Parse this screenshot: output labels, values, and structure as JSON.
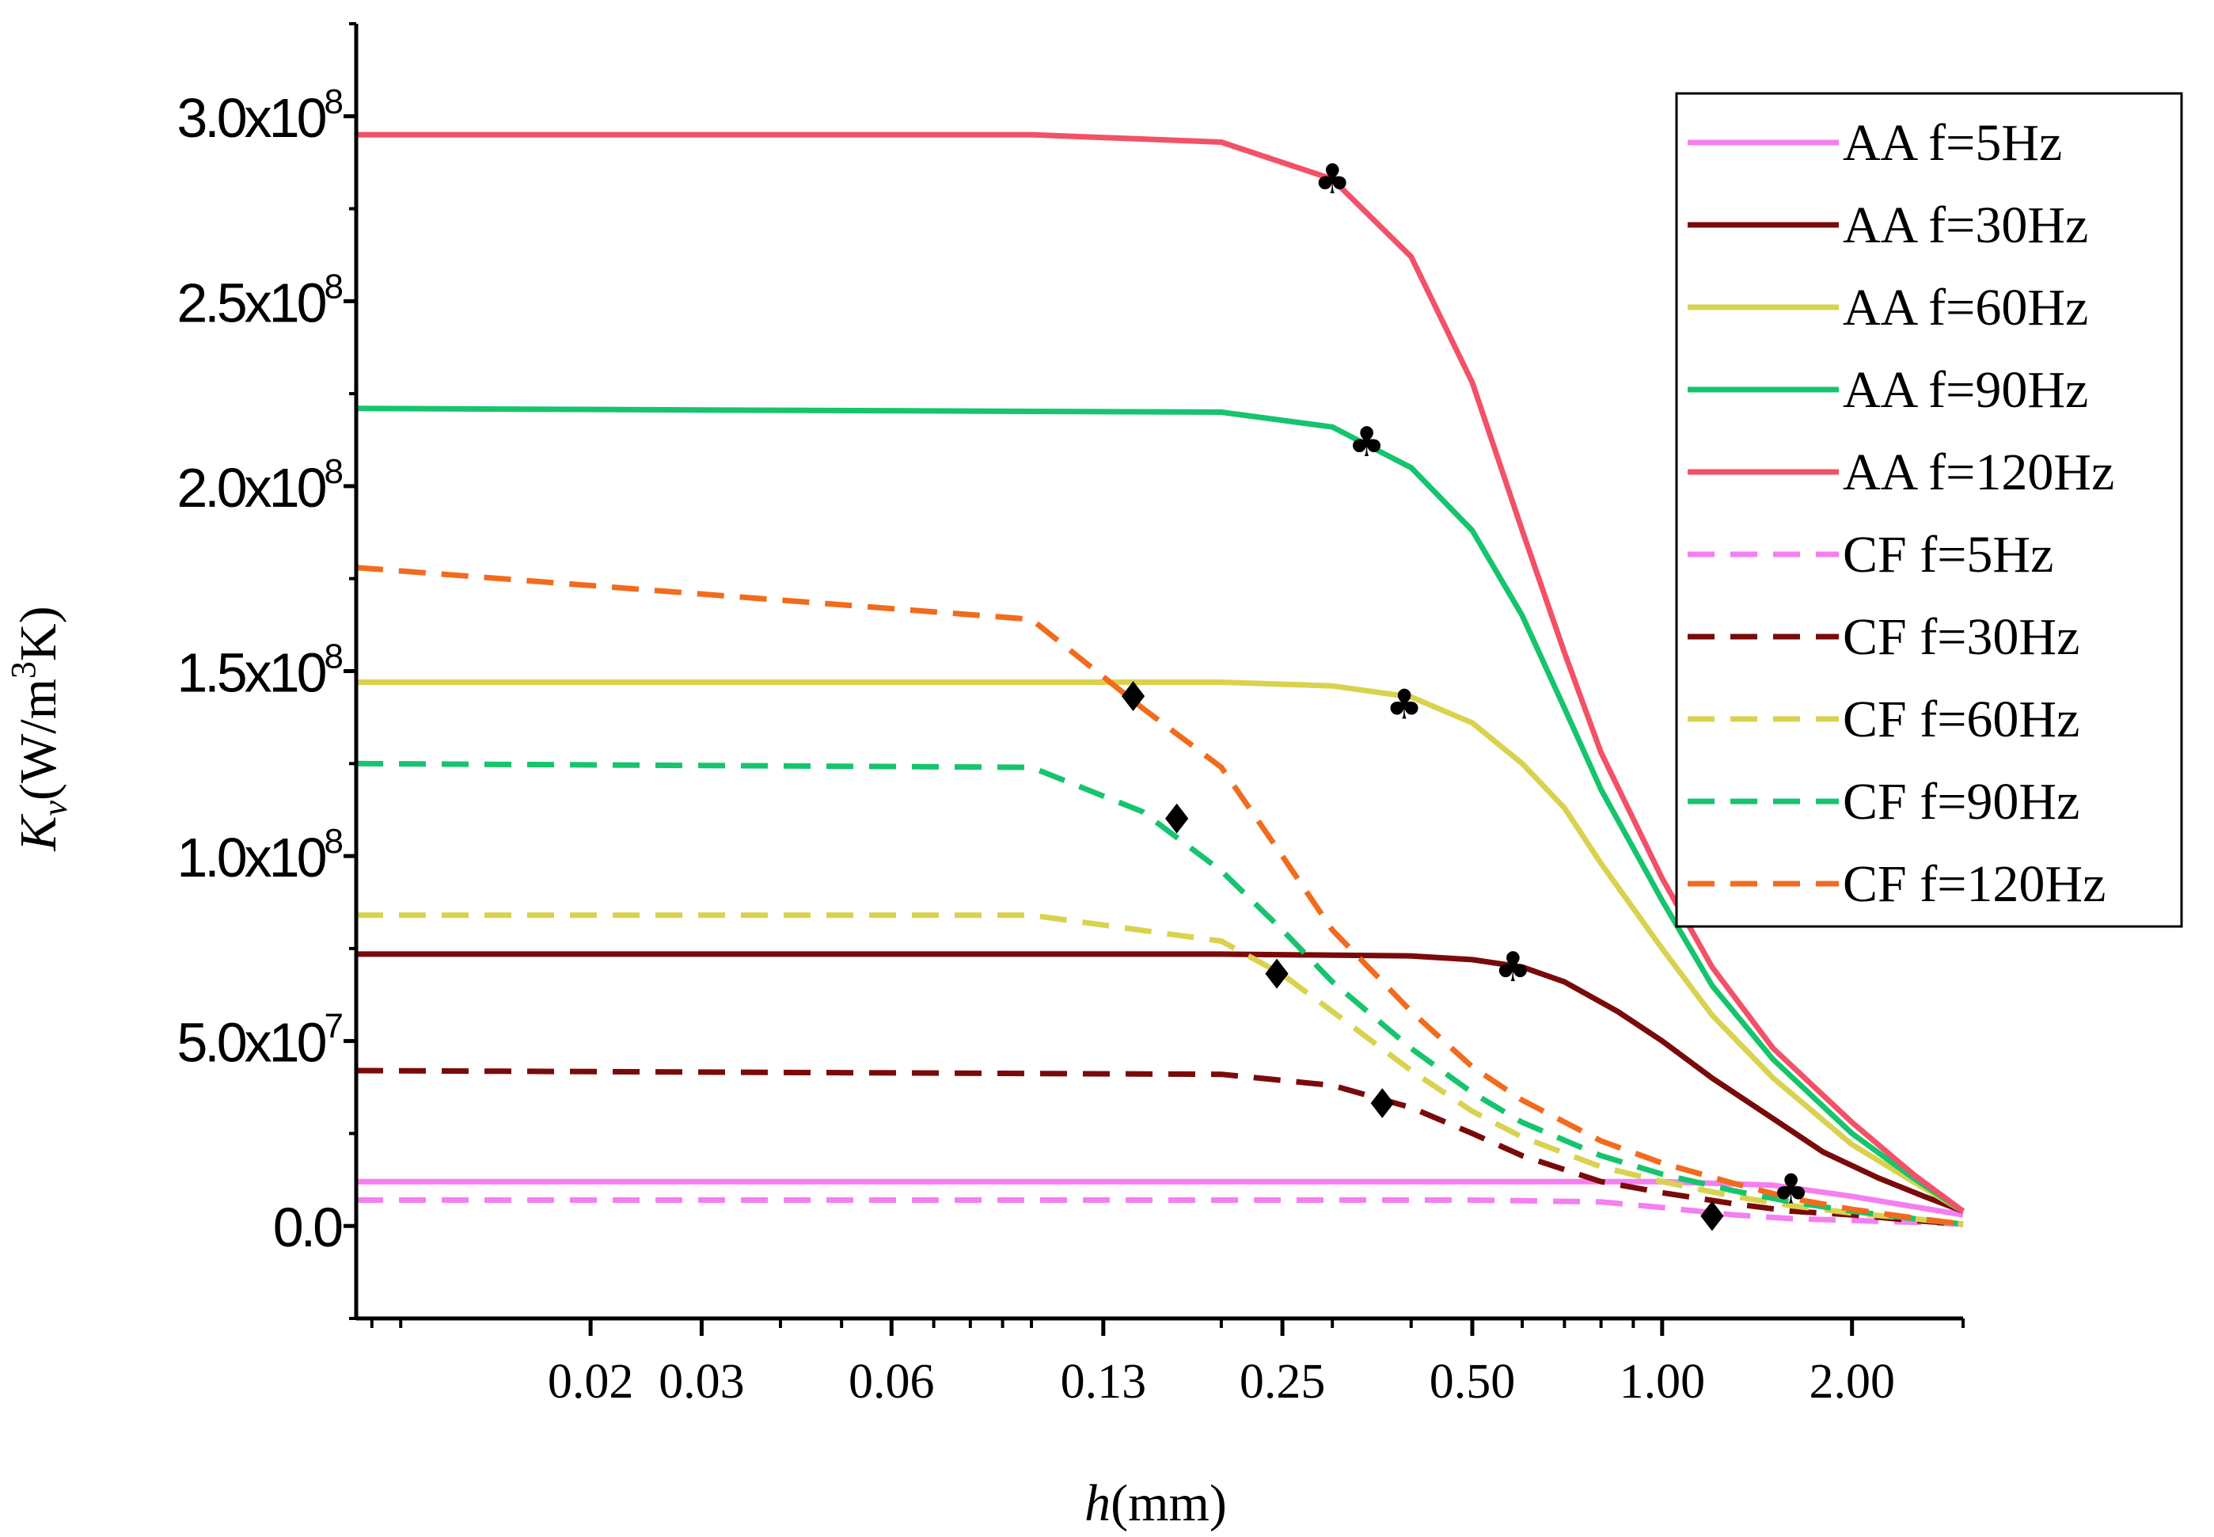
{
  "chart_data": {
    "type": "line",
    "x_scale": "log",
    "xlabel": "h(mm)",
    "xlabel_italic": "h",
    "xlabel_rest": "(mm)",
    "ylabel_italic": "K",
    "ylabel_sub": "v",
    "ylabel_mid": "(W/m",
    "ylabel_sup": "3",
    "ylabel_end": "K)",
    "xlim": [
      0.0085,
      3.0
    ],
    "ylim": [
      -25000000,
      325000000
    ],
    "x_ticks": [
      {
        "value": 0.02,
        "label": "0.02"
      },
      {
        "value": 0.03,
        "label": "0.03"
      },
      {
        "value": 0.06,
        "label": "0.06"
      },
      {
        "value": 0.13,
        "label": "0.13"
      },
      {
        "value": 0.25,
        "label": "0.25"
      },
      {
        "value": 0.5,
        "label": "0.50"
      },
      {
        "value": 1.0,
        "label": "1.00"
      },
      {
        "value": 2.0,
        "label": "2.00"
      }
    ],
    "y_ticks": [
      {
        "value": 0,
        "base": "0.0",
        "exp": ""
      },
      {
        "value": 50000000,
        "base": "5.0x10",
        "exp": "7"
      },
      {
        "value": 100000000,
        "base": "1.0x10",
        "exp": "8"
      },
      {
        "value": 150000000,
        "base": "1.5x10",
        "exp": "8"
      },
      {
        "value": 200000000,
        "base": "2.0x10",
        "exp": "8"
      },
      {
        "value": 250000000,
        "base": "2.5x10",
        "exp": "8"
      },
      {
        "value": 300000000,
        "base": "3.0x10",
        "exp": "8"
      }
    ],
    "legend_position": "top-right",
    "series": [
      {
        "name": "AA f=5Hz",
        "color": "#f57ff0",
        "dash": false,
        "x": [
          0.0085,
          0.1,
          0.5,
          1.0,
          1.5,
          2.0,
          3.0
        ],
        "y": [
          12000000,
          12000000,
          12000000,
          12000000,
          11000000,
          8000000,
          3000000
        ]
      },
      {
        "name": "AA f=30Hz",
        "color": "#7a0a0a",
        "dash": false,
        "x": [
          0.0085,
          0.2,
          0.4,
          0.5,
          0.6,
          0.7,
          0.85,
          1.0,
          1.2,
          1.5,
          1.8,
          2.2,
          2.6,
          3.0
        ],
        "y": [
          73500000,
          73500000,
          73000000,
          72000000,
          70000000,
          66000000,
          58000000,
          50000000,
          40000000,
          29000000,
          20000000,
          13000000,
          8000000,
          4000000
        ]
      },
      {
        "name": "AA f=60Hz",
        "color": "#d9d24f",
        "dash": false,
        "x": [
          0.0085,
          0.2,
          0.3,
          0.4,
          0.5,
          0.6,
          0.7,
          0.8,
          1.0,
          1.2,
          1.5,
          2.0,
          2.5,
          3.0
        ],
        "y": [
          147000000,
          147000000,
          146000000,
          143000000,
          136000000,
          125000000,
          113000000,
          98000000,
          75000000,
          57000000,
          40000000,
          22000000,
          12000000,
          4000000
        ]
      },
      {
        "name": "AA f=90Hz",
        "color": "#16c46e",
        "dash": false,
        "x": [
          0.0085,
          0.2,
          0.3,
          0.4,
          0.5,
          0.6,
          0.7,
          0.8,
          1.0,
          1.2,
          1.5,
          2.0,
          2.5,
          3.0
        ],
        "y": [
          221000000,
          220000000,
          216000000,
          205000000,
          188000000,
          165000000,
          140000000,
          118000000,
          88000000,
          65000000,
          45000000,
          25000000,
          13000000,
          4000000
        ]
      },
      {
        "name": "AA f=120Hz",
        "color": "#f25167",
        "dash": false,
        "x": [
          0.0085,
          0.1,
          0.2,
          0.3,
          0.4,
          0.5,
          0.6,
          0.7,
          0.8,
          1.0,
          1.2,
          1.5,
          2.0,
          2.5,
          3.0
        ],
        "y": [
          295000000,
          295000000,
          293000000,
          283000000,
          262000000,
          228000000,
          188000000,
          155000000,
          128000000,
          94000000,
          70000000,
          48000000,
          28000000,
          14000000,
          4000000
        ]
      },
      {
        "name": "CF f=5Hz",
        "color": "#f57ff0",
        "dash": true,
        "x": [
          0.0085,
          0.5,
          0.8,
          1.0,
          1.3,
          1.6,
          2.0,
          2.5,
          3.0
        ],
        "y": [
          7000000,
          7000000,
          6500000,
          5000000,
          3000000,
          2000000,
          1500000,
          1000000,
          500000
        ]
      },
      {
        "name": "CF f=30Hz",
        "color": "#7a0a0a",
        "dash": true,
        "x": [
          0.0085,
          0.2,
          0.3,
          0.4,
          0.5,
          0.6,
          0.8,
          1.0,
          1.3,
          1.6,
          2.0,
          2.5,
          3.0
        ],
        "y": [
          42000000,
          41000000,
          38000000,
          32000000,
          25000000,
          19000000,
          12000000,
          9000000,
          6000000,
          4000000,
          3000000,
          1500000,
          500000
        ]
      },
      {
        "name": "CF f=60Hz",
        "color": "#d9d24f",
        "dash": true,
        "x": [
          0.0085,
          0.1,
          0.2,
          0.25,
          0.3,
          0.4,
          0.5,
          0.6,
          0.8,
          1.0,
          1.3,
          1.6,
          2.0,
          2.5,
          3.0
        ],
        "y": [
          84000000,
          84000000,
          77000000,
          68000000,
          58000000,
          42000000,
          31000000,
          24000000,
          16000000,
          12000000,
          8000000,
          5500000,
          3500000,
          2000000,
          500000
        ]
      },
      {
        "name": "CF f=90Hz",
        "color": "#16c46e",
        "dash": true,
        "x": [
          0.0085,
          0.1,
          0.15,
          0.2,
          0.25,
          0.3,
          0.4,
          0.5,
          0.6,
          0.8,
          1.0,
          1.3,
          1.6,
          2.0,
          2.5,
          3.0
        ],
        "y": [
          125000000,
          124000000,
          112000000,
          96000000,
          80000000,
          66000000,
          48000000,
          36000000,
          28000000,
          19000000,
          14000000,
          9500000,
          6500000,
          4000000,
          2000000,
          500000
        ]
      },
      {
        "name": "CF f=120Hz",
        "color": "#f26b1d",
        "dash": true,
        "x": [
          0.0085,
          0.1,
          0.15,
          0.2,
          0.25,
          0.3,
          0.4,
          0.5,
          0.6,
          0.8,
          1.0,
          1.3,
          1.6,
          2.0,
          2.5,
          3.0
        ],
        "y": [
          178000000,
          164000000,
          140000000,
          124000000,
          100000000,
          80000000,
          58000000,
          43000000,
          34000000,
          23000000,
          17000000,
          11500000,
          7500000,
          4500000,
          2200000,
          500000
        ]
      }
    ],
    "annotations": [
      {
        "symbol": "♣",
        "x": 0.3,
        "y": 283000000
      },
      {
        "symbol": "♣",
        "x": 0.34,
        "y": 212000000
      },
      {
        "symbol": "♣",
        "x": 0.39,
        "y": 141000000
      },
      {
        "symbol": "♣",
        "x": 0.58,
        "y": 70000000
      },
      {
        "symbol": "♣",
        "x": 1.6,
        "y": 10000000
      },
      {
        "symbol": "♦",
        "x": 0.145,
        "y": 143000000
      },
      {
        "symbol": "♦",
        "x": 0.17,
        "y": 110000000
      },
      {
        "symbol": "♦",
        "x": 0.245,
        "y": 68000000
      },
      {
        "symbol": "♦",
        "x": 0.36,
        "y": 33000000
      },
      {
        "symbol": "♦",
        "x": 1.2,
        "y": 2500000
      }
    ]
  }
}
